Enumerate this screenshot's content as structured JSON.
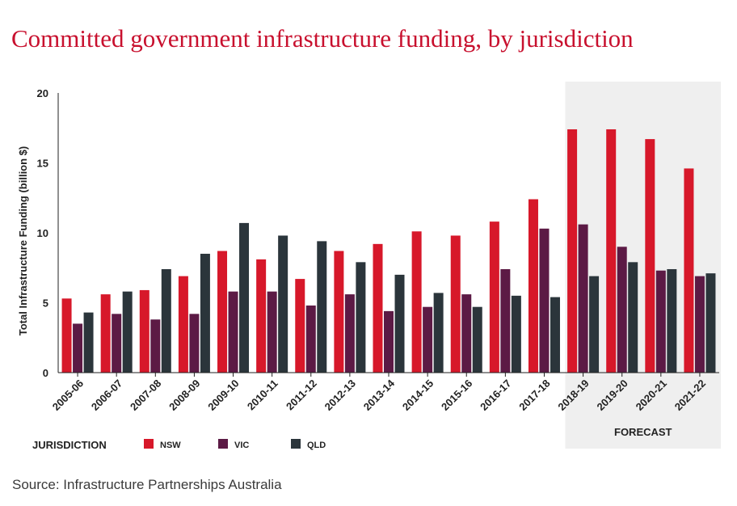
{
  "title": "Committed government infrastructure funding, by jurisdiction",
  "source": "Source: Infrastructure Partnerships Australia",
  "chart_data": {
    "type": "bar",
    "ylabel": "Total Infrastructure Funding (billion $)",
    "ylim": [
      0,
      20
    ],
    "yticks": [
      "0",
      "5",
      "10",
      "15",
      "20"
    ],
    "categories": [
      "2005-06",
      "2006-07",
      "2007-08",
      "2008-09",
      "2009-10",
      "2010-11",
      "2011-12",
      "2012-13",
      "2013-14",
      "2014-15",
      "2015-16",
      "2016-17",
      "2017-18",
      "2018-19",
      "2019-20",
      "2020-21",
      "2021-22"
    ],
    "series": [
      {
        "name": "NSW",
        "color": "#d7182a",
        "values": [
          5.3,
          5.6,
          5.9,
          6.9,
          8.7,
          8.1,
          6.7,
          8.7,
          9.2,
          10.1,
          9.8,
          10.8,
          12.4,
          17.4,
          17.4,
          16.7,
          14.6
        ]
      },
      {
        "name": "VIC",
        "color": "#5c1a45",
        "values": [
          3.5,
          4.2,
          3.8,
          4.2,
          5.8,
          5.8,
          4.8,
          5.6,
          4.4,
          4.7,
          5.6,
          7.4,
          10.3,
          10.6,
          9.0,
          7.3,
          6.9
        ]
      },
      {
        "name": "QLD",
        "color": "#2b353b",
        "values": [
          4.3,
          5.8,
          7.4,
          8.5,
          10.7,
          9.8,
          9.4,
          7.9,
          7.0,
          5.7,
          4.7,
          5.5,
          5.4,
          6.9,
          7.9,
          7.4,
          7.1
        ]
      }
    ],
    "legend_title": "JURISDICTION",
    "legend_position": "bottom-left",
    "forecast_label": "FORECAST",
    "forecast_from": "2018-19",
    "grid": false
  }
}
